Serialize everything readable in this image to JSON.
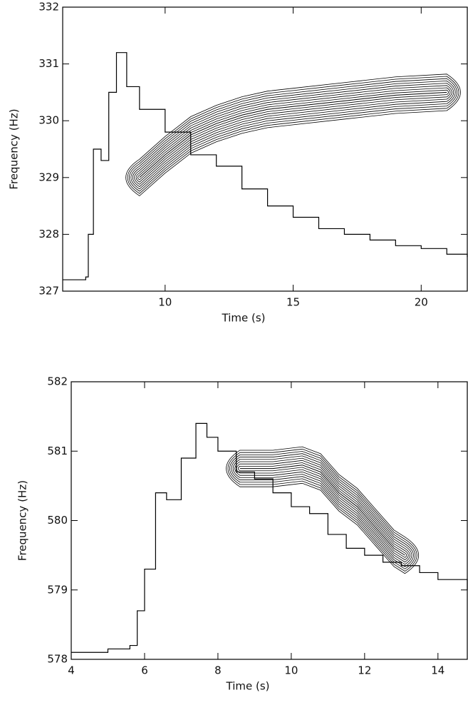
{
  "chart_data": [
    {
      "type": "line",
      "xlabel": "Time (s)",
      "ylabel": "Frequency (Hz)",
      "xlim": [
        6.0,
        21.8
      ],
      "ylim": [
        327,
        332
      ],
      "xticks": [
        10,
        15,
        20
      ],
      "yticks": [
        327,
        328,
        329,
        330,
        331,
        332
      ],
      "series": [
        {
          "color": "#000000",
          "drawstyle": "steps",
          "x": [
            6.0,
            6.9,
            7.0,
            7.2,
            7.5,
            7.8,
            8.1,
            8.5,
            9,
            10,
            11,
            12,
            13,
            14,
            15,
            16,
            17,
            18,
            19,
            20,
            21,
            21.8
          ],
          "values": [
            327.2,
            327.25,
            328,
            329.5,
            329.3,
            330.5,
            331.2,
            330.6,
            330.2,
            329.8,
            329.4,
            329.2,
            328.8,
            328.5,
            328.3,
            328.1,
            328.0,
            327.9,
            327.8,
            327.75,
            327.65,
            327.6
          ]
        },
        {
          "color": "#000000",
          "drawstyle": "contour",
          "x": [
            9,
            10,
            11,
            12,
            13,
            14,
            15,
            17,
            19,
            21
          ],
          "values": [
            329.0,
            329.4,
            329.75,
            329.95,
            330.1,
            330.2,
            330.25,
            330.35,
            330.45,
            330.5
          ]
        }
      ]
    },
    {
      "type": "line",
      "xlabel": "Time (s)",
      "ylabel": "Frequency (Hz)",
      "xlim": [
        4,
        14.8
      ],
      "ylim": [
        578,
        582
      ],
      "xticks": [
        4,
        6,
        8,
        10,
        12,
        14
      ],
      "yticks": [
        578,
        579,
        580,
        581,
        582
      ],
      "series": [
        {
          "color": "#000000",
          "drawstyle": "steps",
          "x": [
            4,
            5,
            5.6,
            5.8,
            6.0,
            6.3,
            6.6,
            7.0,
            7.4,
            7.7,
            8.0,
            8.5,
            9,
            9.5,
            10,
            10.5,
            11,
            11.5,
            12,
            12.5,
            13,
            13.5,
            14,
            14.8
          ],
          "values": [
            578.1,
            578.15,
            578.2,
            578.7,
            579.3,
            580.4,
            580.3,
            580.9,
            581.4,
            581.2,
            581.0,
            580.7,
            580.6,
            580.4,
            580.2,
            580.1,
            579.8,
            579.6,
            579.5,
            579.4,
            579.35,
            579.25,
            579.15,
            579.0
          ]
        },
        {
          "color": "#000000",
          "drawstyle": "contour",
          "x": [
            8.6,
            9.5,
            10.3,
            10.8,
            11.3,
            11.8,
            12.3,
            12.8,
            13.1
          ],
          "values": [
            580.75,
            580.75,
            580.8,
            580.7,
            580.4,
            580.2,
            579.9,
            579.6,
            579.5
          ]
        }
      ]
    }
  ]
}
